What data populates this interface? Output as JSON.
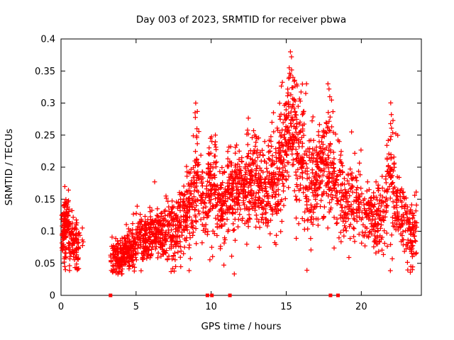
{
  "chart_data": {
    "type": "scatter",
    "title": "Day 003 of 2023, SRMTID for receiver pbwa",
    "xlabel": "GPS time / hours",
    "ylabel": "SRMTID / TECUs",
    "xlim": [
      0,
      24
    ],
    "ylim": [
      0,
      0.4
    ],
    "xticks": [
      {
        "v": 0,
        "label": "0"
      },
      {
        "v": 5,
        "label": "5"
      },
      {
        "v": 10,
        "label": "10"
      },
      {
        "v": 15,
        "label": "15"
      },
      {
        "v": 20,
        "label": "20"
      }
    ],
    "yticks": [
      {
        "v": 0,
        "label": "0"
      },
      {
        "v": 0.05,
        "label": "0.05"
      },
      {
        "v": 0.1,
        "label": "0.1"
      },
      {
        "v": 0.15,
        "label": "0.15"
      },
      {
        "v": 0.2,
        "label": "0.2"
      },
      {
        "v": 0.25,
        "label": "0.25"
      },
      {
        "v": 0.3,
        "label": "0.3"
      },
      {
        "v": 0.35,
        "label": "0.35"
      },
      {
        "v": 0.4,
        "label": "0.4"
      }
    ],
    "marker": "+",
    "marker_color": "#ff0000",
    "axis_color": "#000000",
    "grid": false,
    "legend": "none",
    "cluster_format": [
      "x_start_hours",
      "x_end_hours",
      "y_mean_TECUs",
      "y_sd_TECUs",
      "count"
    ],
    "clusters": [
      [
        0.05,
        0.35,
        0.1,
        0.025,
        60
      ],
      [
        0.2,
        0.55,
        0.12,
        0.02,
        55
      ],
      [
        0.5,
        0.8,
        0.08,
        0.02,
        40
      ],
      [
        0.8,
        1.2,
        0.08,
        0.025,
        55
      ],
      [
        1.2,
        1.5,
        0.095,
        0.01,
        6
      ],
      [
        3.3,
        4.2,
        0.06,
        0.015,
        120
      ],
      [
        4.2,
        5.0,
        0.07,
        0.018,
        120
      ],
      [
        5.0,
        6.0,
        0.09,
        0.02,
        130
      ],
      [
        6.0,
        7.0,
        0.1,
        0.02,
        130
      ],
      [
        7.0,
        8.0,
        0.1,
        0.025,
        120
      ],
      [
        8.0,
        8.8,
        0.13,
        0.03,
        100
      ],
      [
        8.8,
        9.2,
        0.19,
        0.04,
        60
      ],
      [
        9.3,
        9.8,
        0.15,
        0.03,
        50
      ],
      [
        9.8,
        10.4,
        0.17,
        0.035,
        80
      ],
      [
        10.4,
        11.0,
        0.14,
        0.03,
        80
      ],
      [
        11.0,
        11.6,
        0.16,
        0.035,
        80
      ],
      [
        11.6,
        12.3,
        0.17,
        0.03,
        90
      ],
      [
        12.3,
        13.0,
        0.18,
        0.035,
        100
      ],
      [
        13.0,
        13.8,
        0.17,
        0.035,
        100
      ],
      [
        13.8,
        14.5,
        0.18,
        0.04,
        90
      ],
      [
        14.5,
        15.0,
        0.22,
        0.045,
        80
      ],
      [
        15.0,
        15.6,
        0.27,
        0.05,
        90
      ],
      [
        15.6,
        16.2,
        0.22,
        0.05,
        90
      ],
      [
        16.2,
        17.0,
        0.17,
        0.04,
        90
      ],
      [
        17.0,
        17.6,
        0.2,
        0.04,
        80
      ],
      [
        17.6,
        18.2,
        0.2,
        0.05,
        80
      ],
      [
        18.2,
        19.0,
        0.16,
        0.035,
        80
      ],
      [
        19.0,
        20.0,
        0.15,
        0.03,
        90
      ],
      [
        20.0,
        21.0,
        0.12,
        0.025,
        90
      ],
      [
        21.0,
        21.7,
        0.13,
        0.03,
        70
      ],
      [
        21.7,
        22.2,
        0.18,
        0.05,
        60
      ],
      [
        22.2,
        23.0,
        0.13,
        0.03,
        80
      ],
      [
        23.0,
        23.7,
        0.1,
        0.03,
        80
      ]
    ],
    "notable_points": [
      [
        15.28,
        0.38
      ],
      [
        15.35,
        0.372
      ],
      [
        15.2,
        0.355
      ],
      [
        15.45,
        0.34
      ],
      [
        8.97,
        0.3
      ],
      [
        8.93,
        0.285
      ],
      [
        9.05,
        0.26
      ],
      [
        17.78,
        0.33
      ],
      [
        17.85,
        0.322
      ],
      [
        17.9,
        0.31
      ],
      [
        16.35,
        0.33
      ],
      [
        16.3,
        0.315
      ],
      [
        14.15,
        0.285
      ],
      [
        14.05,
        0.27
      ],
      [
        22.0,
        0.282
      ],
      [
        21.95,
        0.268
      ],
      [
        22.3,
        0.252
      ],
      [
        19.35,
        0.255
      ],
      [
        11.3,
        0.232
      ],
      [
        9.95,
        0.245
      ],
      [
        10.05,
        0.24
      ],
      [
        12.9,
        0.25
      ],
      [
        0.3,
        0.04
      ],
      [
        0.25,
        0.045
      ],
      [
        23.3,
        0.045
      ],
      [
        23.4,
        0.04
      ],
      [
        4.0,
        0.038
      ],
      [
        3.6,
        0.04
      ]
    ],
    "axis_markers_x": [
      3.3,
      9.75,
      10.05,
      11.25,
      17.95,
      18.45
    ]
  }
}
